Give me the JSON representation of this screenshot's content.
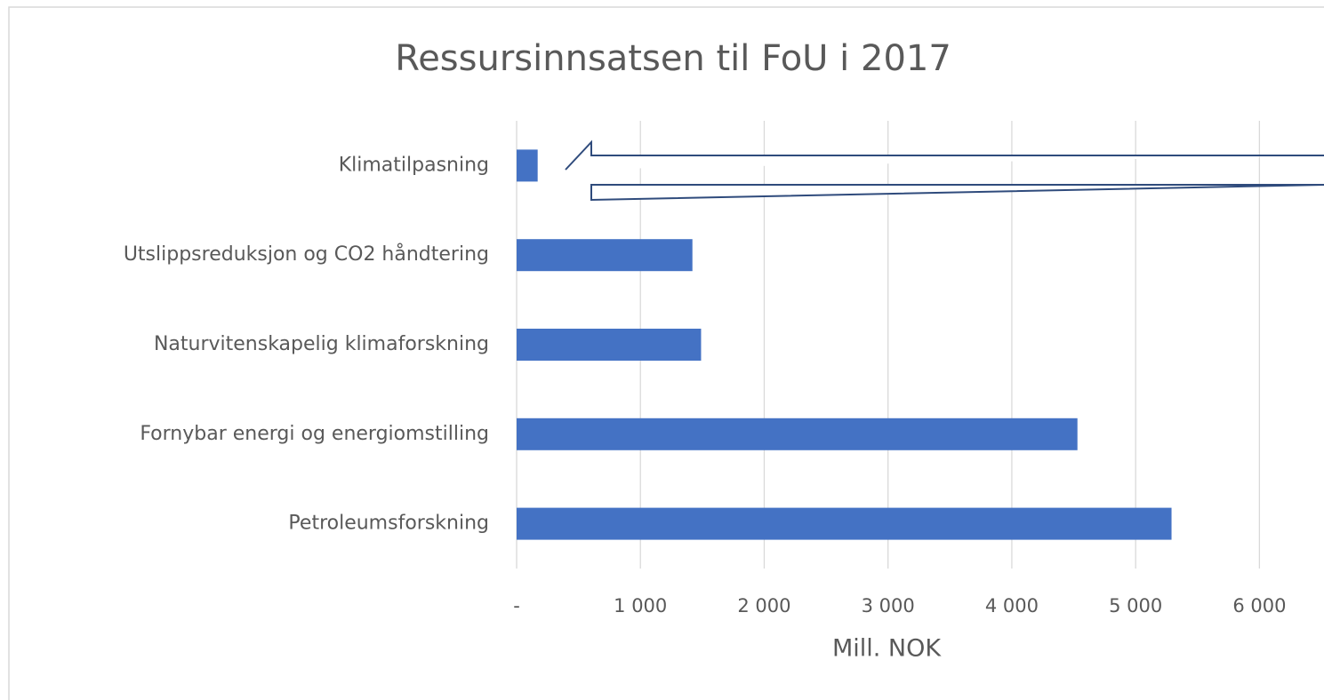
{
  "chart_data": {
    "type": "barh",
    "title": "Ressursinnsatsen til FoU i 2017",
    "categories": [
      "Klimatilpasning",
      "Utslippsreduksjon og CO2 håndtering",
      "Naturvitenskapelig klimaforskning",
      "Fornybar energi og energiomstilling",
      "Petroleumsforskning"
    ],
    "values": [
      170,
      1420,
      1490,
      4530,
      5290
    ],
    "color": "#4472c4",
    "x_label": "Mill. NOK",
    "xlim": [
      0,
      6500
    ],
    "xticks": [
      {
        "value": 0,
        "label": "-"
      },
      {
        "value": 1000,
        "label": "1 000"
      },
      {
        "value": 2000,
        "label": "2 000"
      },
      {
        "value": 3000,
        "label": "3 000"
      },
      {
        "value": 4000,
        "label": "4 000"
      },
      {
        "value": 5000,
        "label": "5 000"
      },
      {
        "value": 6000,
        "label": "6 000"
      }
    ],
    "grid": true
  }
}
